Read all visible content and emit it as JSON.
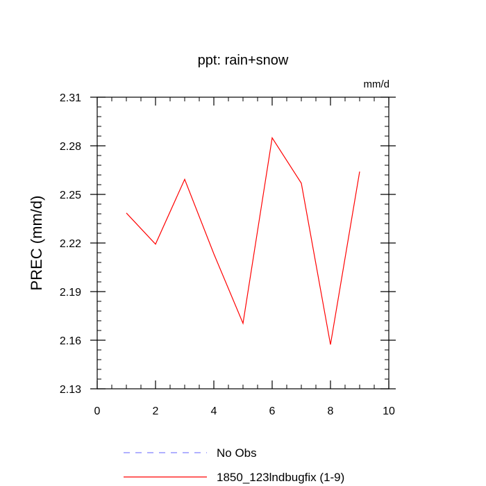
{
  "chart_data": {
    "type": "line",
    "title": "ppt: rain+snow",
    "units_label": "mm/d",
    "xlabel": "",
    "ylabel": "PREC  (mm/d)",
    "xlim": [
      0,
      10
    ],
    "ylim": [
      2.13,
      2.31
    ],
    "x_ticks": [
      0,
      2,
      4,
      6,
      8,
      10
    ],
    "x_tick_labels": [
      "0",
      "2",
      "4",
      "6",
      "8",
      "10"
    ],
    "y_ticks": [
      2.13,
      2.16,
      2.19,
      2.22,
      2.25,
      2.28,
      2.31
    ],
    "y_tick_labels": [
      "2.13",
      "2.16",
      "2.19",
      "2.22",
      "2.25",
      "2.28",
      "2.31"
    ],
    "grid": false,
    "legend_position": "bottom",
    "series": [
      {
        "name": "No Obs",
        "color": "#8080ff",
        "dashed": true,
        "x": [],
        "y": []
      },
      {
        "name": "1850_123lndbugfix (1-9)",
        "color": "#ff0000",
        "dashed": false,
        "x": [
          1,
          2,
          3,
          4,
          5,
          6,
          7,
          8,
          9
        ],
        "y": [
          2.2385,
          2.2193,
          2.2593,
          2.2133,
          2.1704,
          2.2849,
          2.2569,
          2.1573,
          2.2641
        ]
      }
    ]
  }
}
